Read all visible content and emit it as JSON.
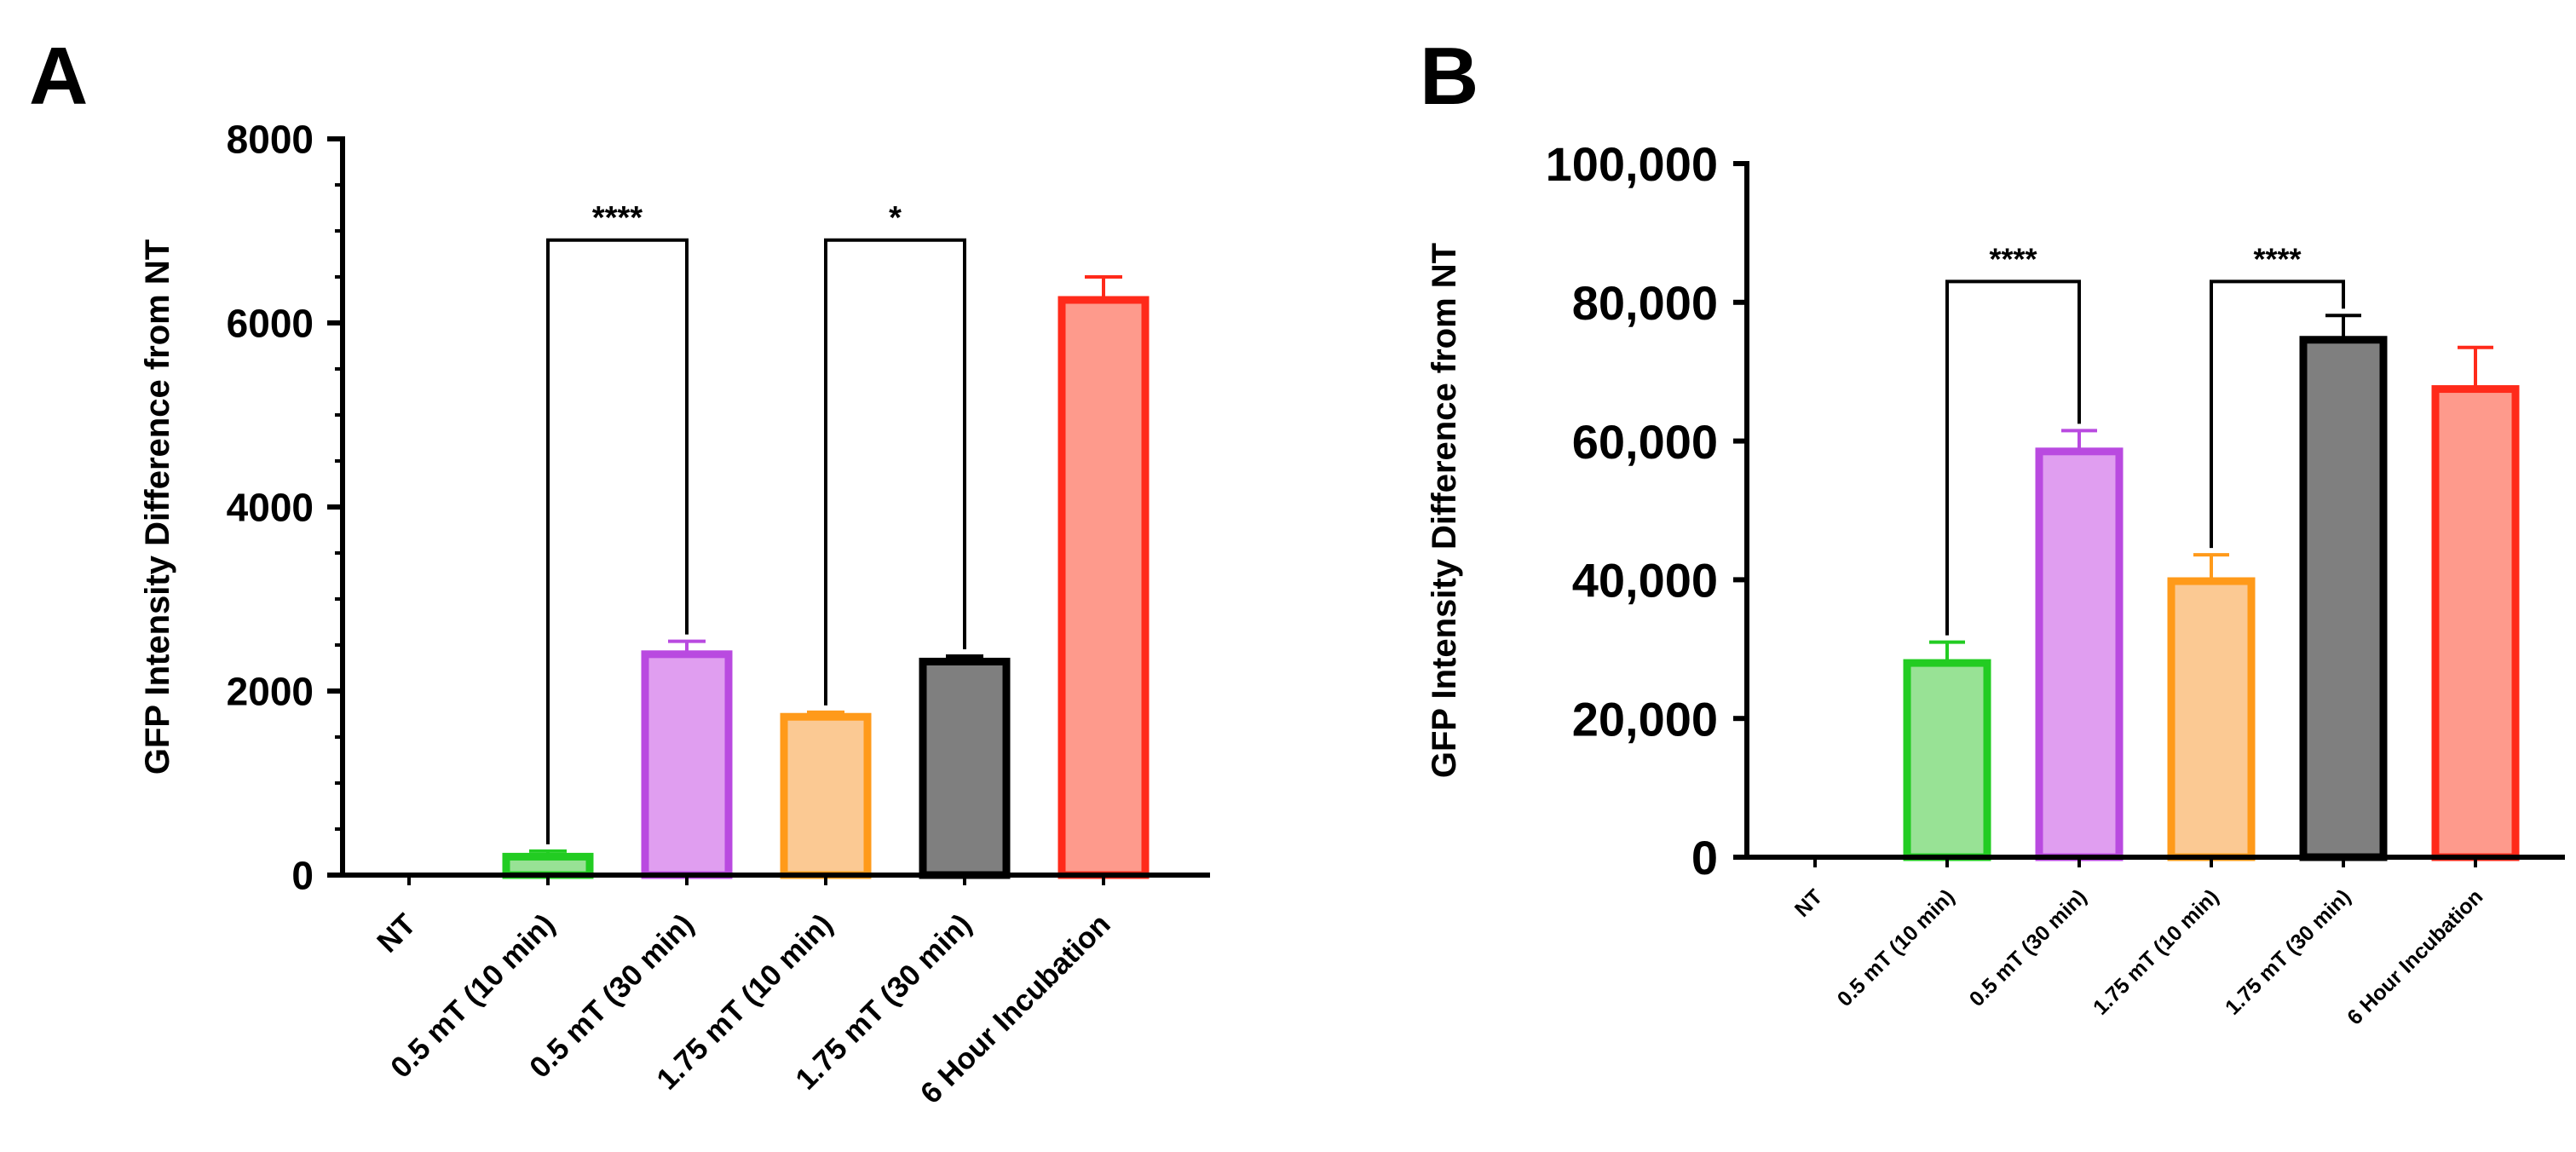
{
  "chart_data": [
    {
      "panel": "A",
      "type": "bar",
      "ylabel": "GFP Intensity  Difference from NT",
      "ylim": [
        0,
        8000
      ],
      "yticks": [
        0,
        2000,
        4000,
        6000,
        8000
      ],
      "ytick_labels": [
        "0",
        "2000",
        "4000",
        "6000",
        "8000"
      ],
      "categories": [
        "NT",
        "0.5 mT (10 min)",
        "0.5 mT (30 min)",
        "1.75 mT (10 min)",
        "1.75 mT (30 min)",
        "6 Hour Incubation"
      ],
      "values": [
        0,
        200,
        2400,
        1720,
        2320,
        6250
      ],
      "errors": [
        0,
        60,
        140,
        50,
        60,
        250
      ],
      "fill_colors": [
        "#ffffff",
        "#98e295",
        "#e09ef0",
        "#fbc993",
        "#7f7f7f",
        "#fe9a8c"
      ],
      "edge_colors": [
        "#000000",
        "#22cc22",
        "#b94ae0",
        "#ff9a1a",
        "#000000",
        "#ff2a1a"
      ],
      "significance": [
        {
          "from": 1,
          "to": 2,
          "label": "****",
          "level": 6900
        },
        {
          "from": 3,
          "to": 4,
          "label": "*",
          "level": 6900
        }
      ]
    },
    {
      "panel": "B",
      "type": "bar",
      "ylabel": "GFP Intensity  Difference from NT",
      "ylim": [
        0,
        100000
      ],
      "yticks": [
        0,
        20000,
        40000,
        60000,
        80000,
        100000
      ],
      "ytick_labels": [
        "0",
        "20,000",
        "40,000",
        "60,000",
        "80,000",
        "100,000"
      ],
      "categories": [
        "NT",
        "0.5 mT (10 min)",
        "0.5 mT (30 min)",
        "1.75 mT (10 min)",
        "1.75 mT (30 min)",
        "6 Hour Incubation"
      ],
      "values": [
        0,
        28000,
        58500,
        39800,
        74600,
        67500
      ],
      "errors": [
        0,
        3000,
        3000,
        3800,
        3500,
        6000
      ],
      "fill_colors": [
        "#ffffff",
        "#98e295",
        "#e09ef0",
        "#fbc993",
        "#7f7f7f",
        "#fe9a8c"
      ],
      "edge_colors": [
        "#000000",
        "#22cc22",
        "#b94ae0",
        "#ff9a1a",
        "#000000",
        "#ff2a1a"
      ],
      "significance": [
        {
          "from": 1,
          "to": 2,
          "label": "****",
          "level": 83000
        },
        {
          "from": 3,
          "to": 4,
          "label": "****",
          "level": 83000
        }
      ]
    }
  ],
  "panels": {
    "a_label": "A",
    "b_label": "B"
  }
}
